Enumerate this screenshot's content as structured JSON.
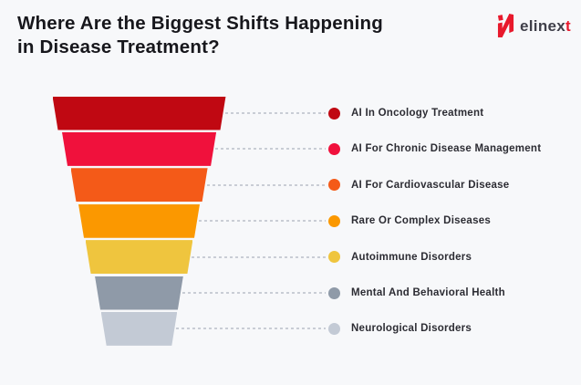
{
  "page": {
    "background": "#F7F8FA"
  },
  "header": {
    "title_line1": "Where Are the Biggest Shifts Happening",
    "title_line2": "in Disease Treatment?"
  },
  "logo": {
    "text_main": "elinex",
    "text_accent": "t",
    "accent_color": "#E8192C",
    "icon_color": "#E8192C",
    "text_color": "#3F3F49"
  },
  "chart_data": {
    "type": "funnel",
    "title": "Where Are the Biggest Shifts Happening in Disease Treatment?",
    "orientation": "top-wide-descending",
    "value_labels_shown": false,
    "legend_position": "right",
    "items": [
      {
        "label": "AI In Oncology Treatment",
        "color": "#C00812",
        "relative_width_pct": 100
      },
      {
        "label": "AI For Chronic Disease Management",
        "color": "#F0113C",
        "relative_width_pct": 89
      },
      {
        "label": "AI For Cardiovascular Disease",
        "color": "#F45A18",
        "relative_width_pct": 79
      },
      {
        "label": "Rare Or Complex Diseases",
        "color": "#FB9800",
        "relative_width_pct": 70
      },
      {
        "label": "Autoimmune Disorders",
        "color": "#EFC53E",
        "relative_width_pct": 62
      },
      {
        "label": "Mental And Behavioral Health",
        "color": "#8F9AA8",
        "relative_width_pct": 51
      },
      {
        "label": "Neurological Disorders",
        "color": "#C3CAD5",
        "relative_width_pct": 44
      }
    ]
  }
}
